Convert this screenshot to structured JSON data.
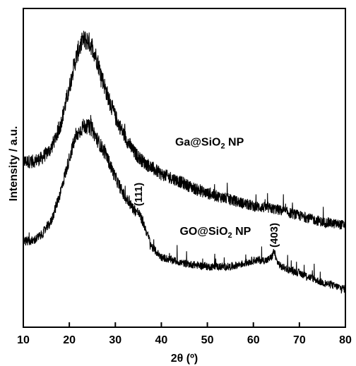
{
  "chart_data": {
    "type": "line",
    "title": "",
    "xlabel": "2θ (º)",
    "ylabel": "Intensity / a.u.",
    "xlim": [
      10,
      80
    ],
    "xticks": [
      "10",
      "20",
      "30",
      "40",
      "50",
      "60",
      "70",
      "80"
    ],
    "yticks_shown": false,
    "grid": false,
    "legend": "none",
    "series_colors": [
      "#000000",
      "#000000"
    ],
    "series": [
      {
        "name": "Ga@SiO₂ NP",
        "label_parts": {
          "base": "Ga@SiO",
          "sub": "2",
          "tail": " NP"
        },
        "x": [
          10,
          12,
          14,
          16,
          18,
          20,
          21,
          22,
          23,
          24,
          25,
          26,
          27,
          28,
          30,
          32,
          34,
          36,
          38,
          40,
          42,
          45,
          48,
          50,
          55,
          60,
          65,
          70,
          75,
          80
        ],
        "y": [
          0.52,
          0.52,
          0.53,
          0.56,
          0.63,
          0.75,
          0.82,
          0.87,
          0.9,
          0.9,
          0.88,
          0.84,
          0.79,
          0.74,
          0.66,
          0.6,
          0.55,
          0.52,
          0.5,
          0.48,
          0.47,
          0.45,
          0.43,
          0.42,
          0.4,
          0.38,
          0.37,
          0.35,
          0.33,
          0.32
        ]
      },
      {
        "name": "GO@SiO₂ NP",
        "label_parts": {
          "base": "GO@SiO",
          "sub": "2",
          "tail": " NP"
        },
        "x": [
          10,
          12,
          14,
          16,
          18,
          20,
          21,
          22,
          23,
          24,
          25,
          26,
          28,
          30,
          32,
          34,
          35,
          36,
          38,
          40,
          45,
          50,
          55,
          58,
          60,
          62,
          63,
          64,
          64.5,
          65,
          66,
          70,
          75,
          80
        ],
        "y": [
          0.27,
          0.27,
          0.29,
          0.33,
          0.42,
          0.53,
          0.58,
          0.61,
          0.63,
          0.63,
          0.62,
          0.59,
          0.54,
          0.47,
          0.41,
          0.37,
          0.36,
          0.33,
          0.25,
          0.22,
          0.2,
          0.19,
          0.19,
          0.2,
          0.21,
          0.21,
          0.21,
          0.22,
          0.24,
          0.21,
          0.19,
          0.17,
          0.14,
          0.12
        ]
      }
    ],
    "annotations": [
      {
        "text": "(111)",
        "x": 35,
        "y": 0.38,
        "rotation": -90
      },
      {
        "text": "(403)",
        "x": 64.5,
        "y": 0.25,
        "rotation": -90
      }
    ]
  }
}
